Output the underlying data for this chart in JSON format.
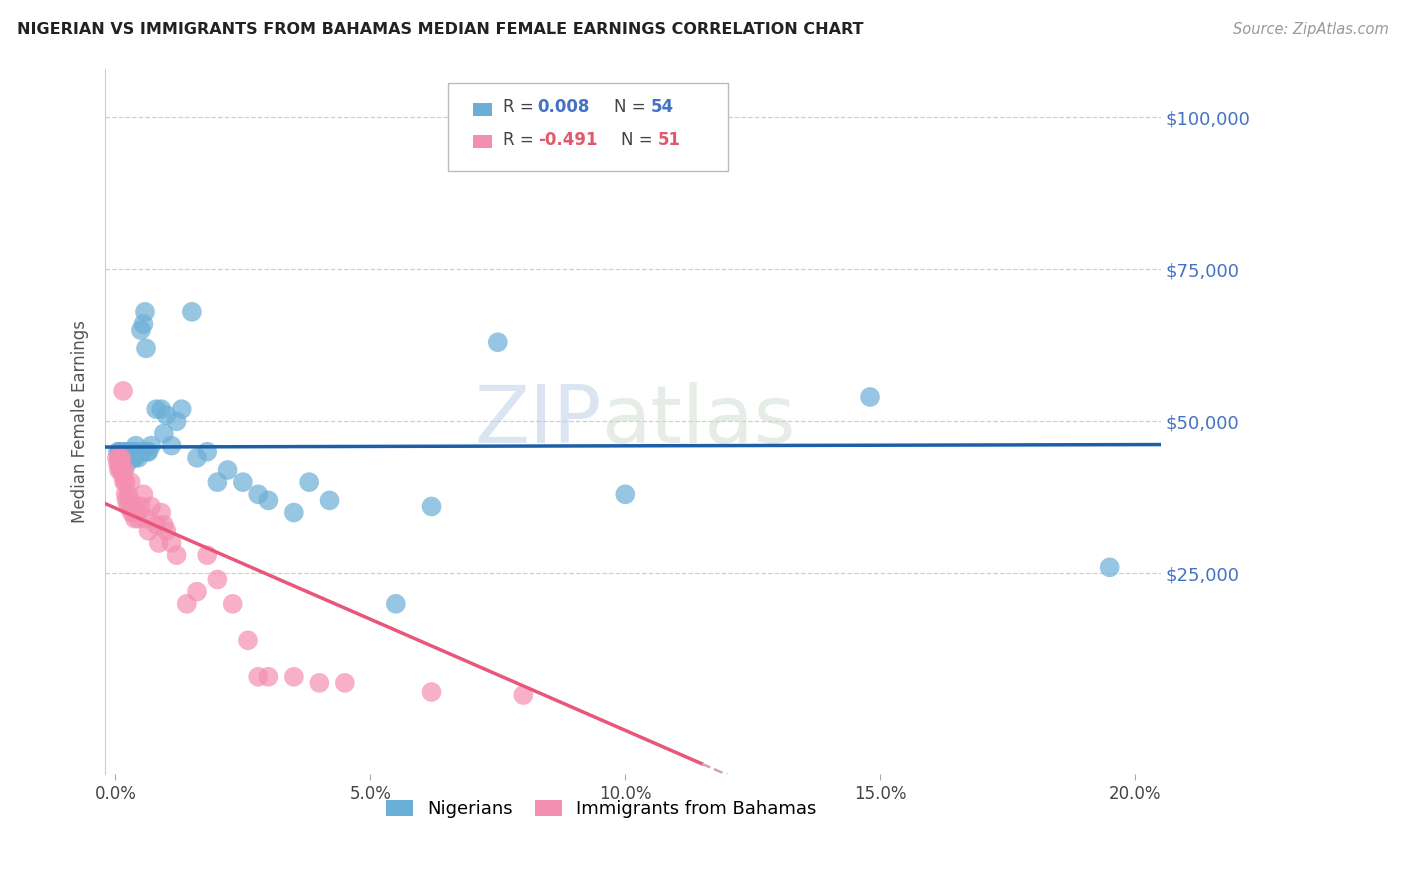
{
  "title": "NIGERIAN VS IMMIGRANTS FROM BAHAMAS MEDIAN FEMALE EARNINGS CORRELATION CHART",
  "source": "Source: ZipAtlas.com",
  "ylabel": "Median Female Earnings",
  "xlabel_ticks": [
    "0.0%",
    "5.0%",
    "10.0%",
    "15.0%",
    "20.0%"
  ],
  "xlabel_vals": [
    0.0,
    0.05,
    0.1,
    0.15,
    0.2
  ],
  "ytick_labels": [
    "$100,000",
    "$75,000",
    "$50,000",
    "$25,000"
  ],
  "ytick_vals": [
    100000,
    75000,
    50000,
    25000
  ],
  "ylim": [
    -8000,
    108000
  ],
  "xlim": [
    -0.002,
    0.205
  ],
  "legend_blue_label": "Nigerians",
  "legend_pink_label": "Immigrants from Bahamas",
  "blue_color": "#6baed6",
  "pink_color": "#f48fb1",
  "trendline_blue_color": "#1a5fa8",
  "trendline_pink_color": "#e8567a",
  "trendline_pink_dashed_color": "#d4a0aa",
  "watermark_zip": "ZIP",
  "watermark_atlas": "atlas",
  "nigerians_x": [
    0.0005,
    0.0008,
    0.001,
    0.001,
    0.0012,
    0.0015,
    0.0015,
    0.0018,
    0.002,
    0.002,
    0.0022,
    0.0025,
    0.0025,
    0.0028,
    0.003,
    0.003,
    0.0032,
    0.0035,
    0.0038,
    0.004,
    0.0042,
    0.0045,
    0.005,
    0.0052,
    0.0055,
    0.0058,
    0.006,
    0.0062,
    0.0065,
    0.007,
    0.008,
    0.009,
    0.0095,
    0.01,
    0.011,
    0.012,
    0.013,
    0.015,
    0.016,
    0.018,
    0.02,
    0.022,
    0.025,
    0.028,
    0.03,
    0.035,
    0.038,
    0.042,
    0.055,
    0.062,
    0.075,
    0.1,
    0.148,
    0.195
  ],
  "nigerians_y": [
    45000,
    45000,
    44000,
    45000,
    44000,
    45000,
    44000,
    44000,
    44000,
    45000,
    43000,
    45000,
    44000,
    44000,
    44000,
    45000,
    45000,
    44000,
    44000,
    46000,
    45000,
    44000,
    65000,
    45000,
    66000,
    68000,
    62000,
    45000,
    45000,
    46000,
    52000,
    52000,
    48000,
    51000,
    46000,
    50000,
    52000,
    68000,
    44000,
    45000,
    40000,
    42000,
    40000,
    38000,
    37000,
    35000,
    40000,
    37000,
    20000,
    36000,
    63000,
    38000,
    54000,
    26000
  ],
  "bahamas_x": [
    0.0003,
    0.0005,
    0.0007,
    0.0008,
    0.001,
    0.001,
    0.0012,
    0.0013,
    0.0015,
    0.0015,
    0.0017,
    0.0018,
    0.002,
    0.002,
    0.0022,
    0.0025,
    0.0025,
    0.0028,
    0.003,
    0.003,
    0.0032,
    0.0035,
    0.0038,
    0.004,
    0.0042,
    0.0045,
    0.005,
    0.0055,
    0.006,
    0.0065,
    0.007,
    0.008,
    0.0085,
    0.009,
    0.0095,
    0.01,
    0.011,
    0.012,
    0.014,
    0.016,
    0.018,
    0.02,
    0.023,
    0.026,
    0.028,
    0.03,
    0.035,
    0.04,
    0.045,
    0.062,
    0.08
  ],
  "bahamas_y": [
    44000,
    43000,
    42000,
    44000,
    43000,
    42000,
    44000,
    42000,
    55000,
    41000,
    40000,
    42000,
    38000,
    40000,
    37000,
    38000,
    36000,
    37000,
    40000,
    36000,
    35000,
    35000,
    34000,
    36000,
    35000,
    34000,
    36000,
    38000,
    34000,
    32000,
    36000,
    33000,
    30000,
    35000,
    33000,
    32000,
    30000,
    28000,
    20000,
    22000,
    28000,
    24000,
    20000,
    14000,
    8000,
    8000,
    8000,
    7000,
    7000,
    5500,
    5000
  ]
}
